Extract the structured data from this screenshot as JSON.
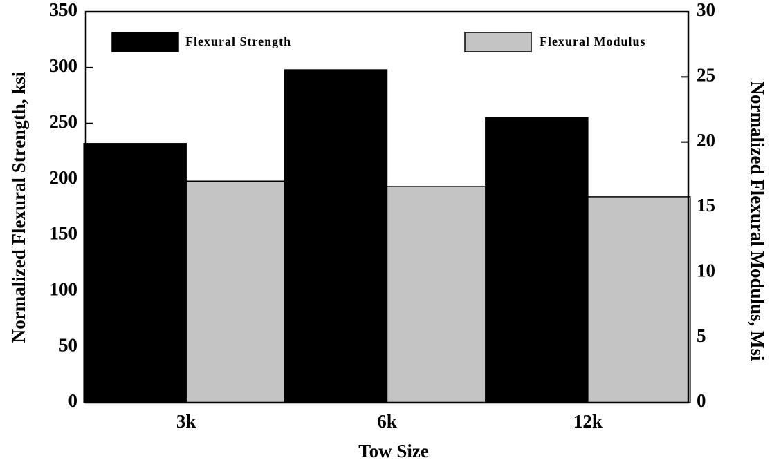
{
  "chart_data": {
    "type": "bar",
    "categories": [
      "3k",
      "6k",
      "12k"
    ],
    "series": [
      {
        "name": "Flexural Strength",
        "color": "#000000",
        "values": [
          232,
          298,
          255
        ]
      },
      {
        "name": "Flexural Modulus",
        "color": "#c4c4c4",
        "values": [
          17.0,
          16.6,
          15.8
        ],
        "axis": "y2"
      }
    ],
    "xlabel": "Tow Size",
    "ylabel": "Normalized Flexural Strength, ksi",
    "y2label": "Normalized Flexural Modulus, Msi",
    "ylim": [
      0,
      350
    ],
    "yticks": [
      0,
      50,
      100,
      150,
      200,
      250,
      300,
      350
    ],
    "y2lim": [
      0,
      30
    ],
    "y2ticks": [
      0,
      5,
      10,
      15,
      20,
      25,
      30
    ],
    "legend": "top"
  }
}
